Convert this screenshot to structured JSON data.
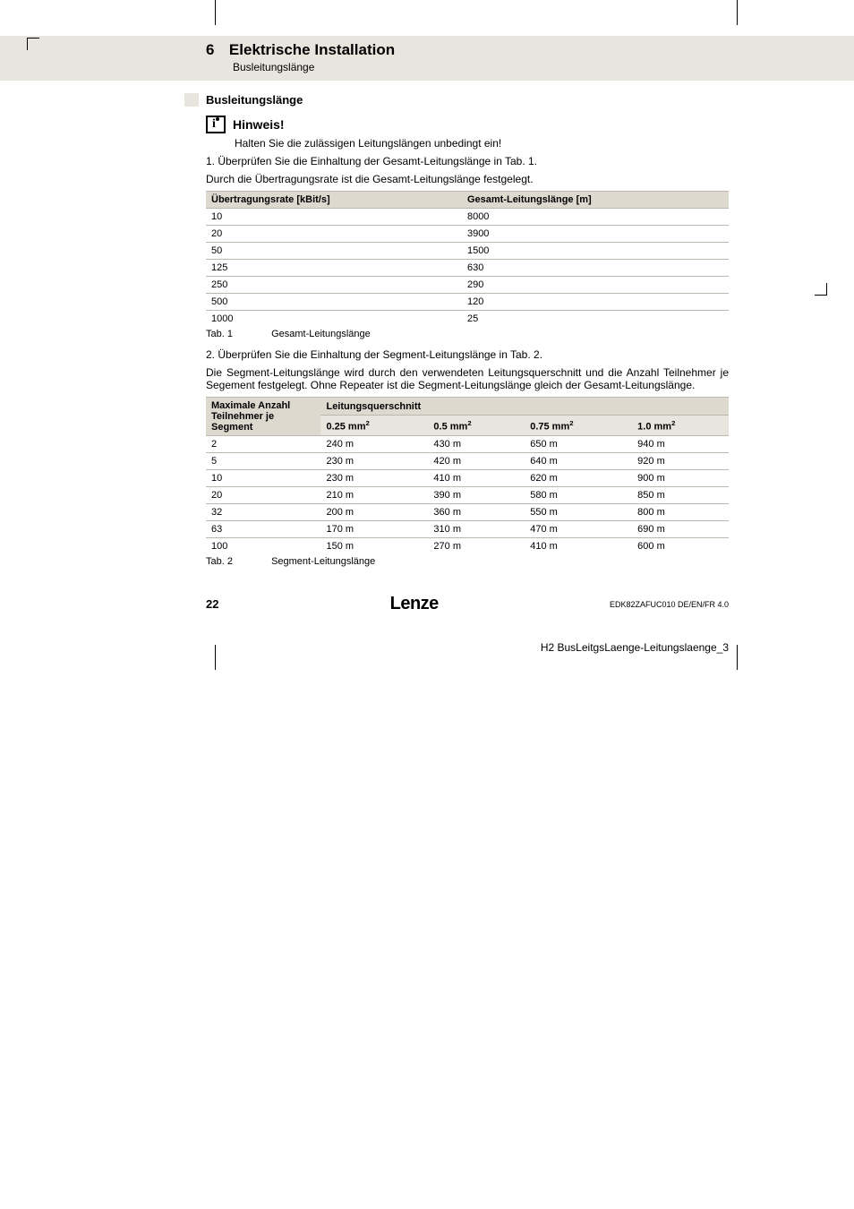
{
  "header": {
    "chapter_number": "6",
    "chapter_title": "Elektrische Installation",
    "chapter_subtitle": "Busleitungslänge"
  },
  "section_heading": "Busleitungslänge",
  "note": {
    "title": "Hinweis!",
    "body": "Halten Sie die zulässigen Leitungslängen unbedingt ein!"
  },
  "step1": "1.   Überprüfen Sie die Einhaltung der Gesamt-Leitungslänge in Tab. 1.",
  "step1_sub": "Durch die Übertragungsrate ist die Gesamt-Leitungslänge festgelegt.",
  "table1": {
    "col1_label": "Übertragungsrate",
    "col1_unit": "[kBit/s]",
    "col2_label": "Gesamt-Leitungslänge",
    "col2_unit": "[m]",
    "rows": [
      [
        "10",
        "8000"
      ],
      [
        "20",
        "3900"
      ],
      [
        "50",
        "1500"
      ],
      [
        "125",
        "630"
      ],
      [
        "250",
        "290"
      ],
      [
        "500",
        "120"
      ],
      [
        "1000",
        "25"
      ]
    ],
    "caption_label": "Tab. 1",
    "caption_text": "Gesamt-Leitungslänge"
  },
  "step2": "2.   Überprüfen Sie die Einhaltung der Segment-Leitungslänge in Tab. 2.",
  "step2_sub": "Die Segment-Leitungslänge wird durch den verwendeten Leitungsquerschnitt und die Anzahl Teilnehmer je Segement festgelegt. Ohne Repeater ist die Segment-Leitungslänge gleich der Gesamt-Leitungslänge.",
  "table2": {
    "rowhdr": "Maximale Anzahl Teilnehmer je Segment",
    "grouphdr": "Leitungsquerschnitt",
    "cols": [
      "0.25 mm",
      "0.5 mm",
      "0.75 mm",
      "1.0 mm"
    ],
    "rows": [
      [
        "2",
        "240 m",
        "430 m",
        "650 m",
        "940 m"
      ],
      [
        "5",
        "230 m",
        "420 m",
        "640 m",
        "920 m"
      ],
      [
        "10",
        "230 m",
        "410 m",
        "620 m",
        "900 m"
      ],
      [
        "20",
        "210 m",
        "390 m",
        "580 m",
        "850 m"
      ],
      [
        "32",
        "200 m",
        "360 m",
        "550 m",
        "800 m"
      ],
      [
        "63",
        "170 m",
        "310 m",
        "470 m",
        "690 m"
      ],
      [
        "100",
        "150 m",
        "270 m",
        "410 m",
        "600 m"
      ]
    ],
    "caption_label": "Tab. 2",
    "caption_text": "Segment-Leitungslänge"
  },
  "footer": {
    "page_number": "22",
    "brand": "Lenze",
    "doc_id": "EDK82ZAFUC010   DE/EN/FR   4.0"
  },
  "footnote": "H2 BusLeitgsLaenge-Leitungslaenge_3"
}
